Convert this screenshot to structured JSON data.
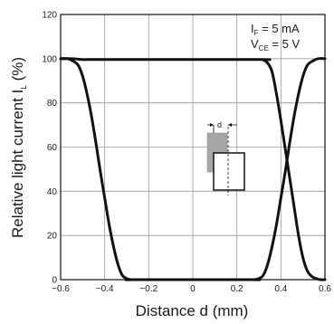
{
  "chart_data": {
    "type": "line",
    "xlabel": "Distance d (mm)",
    "ylabel_text": "Relative light current  I",
    "ylabel_sub": "L",
    "ylabel_unit": " (%)",
    "xlim": [
      -0.6,
      0.6
    ],
    "ylim": [
      0,
      120
    ],
    "x_ticks": [
      -0.6,
      -0.4,
      -0.2,
      0,
      0.2,
      0.4,
      0.6
    ],
    "x_tick_labels": [
      "−0.6",
      "−0.4",
      "−0.2",
      "0",
      "0.2",
      "0.4",
      "0.6"
    ],
    "y_ticks": [
      0,
      20,
      40,
      60,
      80,
      100,
      120
    ],
    "y_tick_labels": [
      "0",
      "20",
      "40",
      "60",
      "80",
      "100",
      "120"
    ],
    "grid": true,
    "conditions": [
      {
        "main": "I",
        "sub": "F",
        "rest": " = 5 mA"
      },
      {
        "main": "V",
        "sub": "CE",
        "rest": " = 5 V"
      }
    ],
    "inset_label": "d",
    "series": [
      {
        "x": [
          -0.6,
          -0.57,
          -0.545,
          -0.52,
          -0.5,
          -0.48,
          -0.46,
          -0.44,
          -0.42,
          -0.4,
          -0.38,
          -0.36,
          -0.34,
          -0.32,
          -0.3,
          -0.28,
          -0.26,
          0.26,
          0.28,
          0.3,
          0.32,
          0.34,
          0.36,
          0.38,
          0.4,
          0.42,
          0.44,
          0.46,
          0.48,
          0.5,
          0.52,
          0.545,
          0.57,
          0.6
        ],
        "y": [
          100,
          100,
          99,
          97,
          92,
          84,
          74,
          62,
          49,
          37,
          25,
          15,
          7,
          2,
          0.5,
          0,
          0,
          0,
          0,
          0.5,
          2,
          7,
          15,
          25,
          37,
          49,
          62,
          74,
          84,
          92,
          97,
          99,
          100,
          100
        ]
      },
      {
        "x": [
          -0.6,
          -0.55,
          -0.52,
          -0.5,
          -0.48,
          -0.46,
          -0.3,
          0.3,
          0.32,
          0.34,
          0.36,
          0.38,
          0.4,
          0.42,
          0.44,
          0.46,
          0.48,
          0.5,
          0.52,
          0.54,
          0.56,
          0.58,
          0.6
        ],
        "y": [
          100,
          100,
          99.8,
          99.6,
          99.6,
          99.6,
          99.6,
          99.6,
          99.4,
          98,
          94,
          84,
          72,
          59,
          46,
          33,
          20,
          10,
          4,
          1.5,
          0.5,
          0,
          0
        ]
      }
    ],
    "curve_color": "#111111",
    "grid_color": "#9a9a9a",
    "inset_fill_color": "#a6a6a6"
  }
}
